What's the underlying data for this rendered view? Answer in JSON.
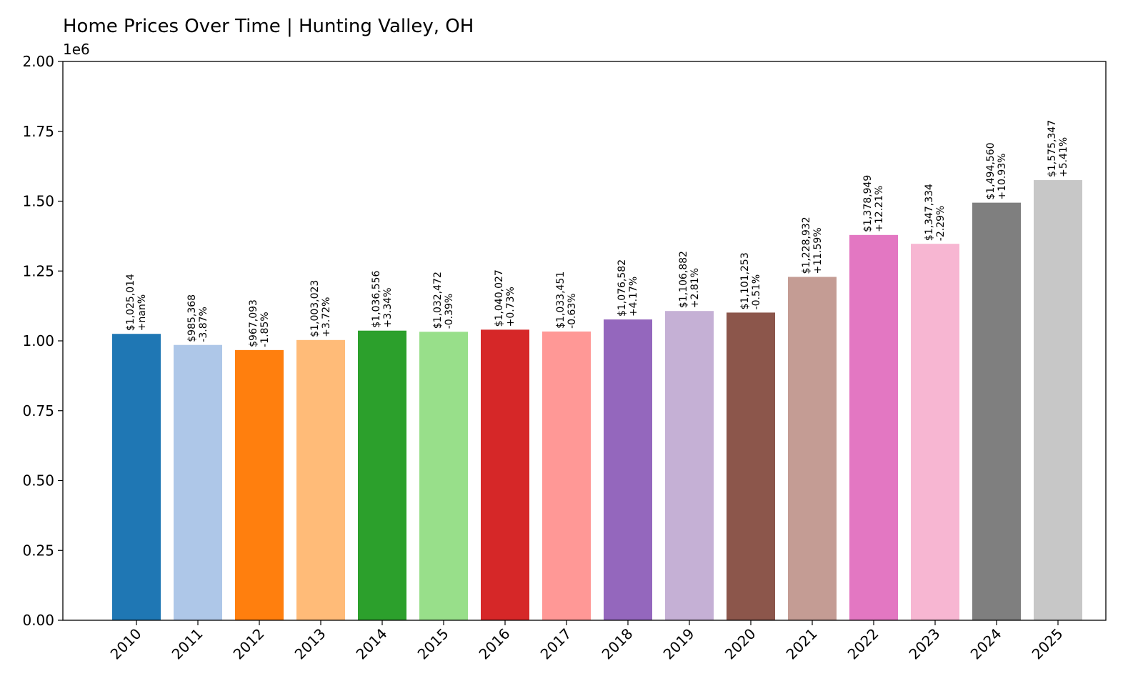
{
  "chart_data": {
    "type": "bar",
    "title": "Home Prices Over Time | Hunting Valley, OH",
    "xlabel": "",
    "ylabel": "",
    "y_offset_text": "1e6",
    "ylim": [
      0,
      2000000
    ],
    "y_ticks": [
      0,
      250000,
      500000,
      750000,
      1000000,
      1250000,
      1500000,
      1750000,
      2000000
    ],
    "y_tick_labels": [
      "0.00",
      "0.25",
      "0.50",
      "0.75",
      "1.00",
      "1.25",
      "1.50",
      "1.75",
      "2.00"
    ],
    "grid": false,
    "legend": "none",
    "categories": [
      "2010",
      "2011",
      "2012",
      "2013",
      "2014",
      "2015",
      "2016",
      "2017",
      "2018",
      "2019",
      "2020",
      "2021",
      "2022",
      "2023",
      "2024",
      "2025"
    ],
    "values": [
      1025014,
      985368,
      967093,
      1003023,
      1036556,
      1032472,
      1040027,
      1033451,
      1076582,
      1106882,
      1101253,
      1228932,
      1378949,
      1347334,
      1494560,
      1575347
    ],
    "value_labels": [
      "$1,025,014",
      "$985,368",
      "$967,093",
      "$1,003,023",
      "$1,036,556",
      "$1,032,472",
      "$1,040,027",
      "$1,033,451",
      "$1,076,582",
      "$1,106,882",
      "$1,101,253",
      "$1,228,932",
      "$1,378,949",
      "$1,347,334",
      "$1,494,560",
      "$1,575,347"
    ],
    "change_labels": [
      "+nan%",
      "-3.87%",
      "-1.85%",
      "+3.72%",
      "+3.34%",
      "-0.39%",
      "+0.73%",
      "-0.63%",
      "+4.17%",
      "+2.81%",
      "-0.51%",
      "+11.59%",
      "+12.21%",
      "-2.29%",
      "+10.93%",
      "+5.41%"
    ],
    "colors": [
      "#1f77b4",
      "#aec7e8",
      "#ff7f0e",
      "#ffbb78",
      "#2ca02c",
      "#98df8a",
      "#d62728",
      "#ff9896",
      "#9467bd",
      "#c5b0d5",
      "#8c564b",
      "#c49c94",
      "#e377c2",
      "#f7b6d2",
      "#7f7f7f",
      "#c7c7c7"
    ]
  }
}
